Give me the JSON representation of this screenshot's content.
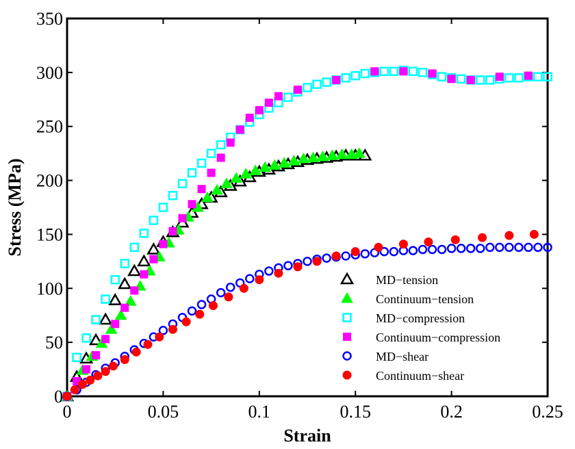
{
  "chart_data": {
    "type": "scatter",
    "title": "",
    "xlabel": "Strain",
    "ylabel": "Stress (MPa)",
    "xlim": [
      0,
      0.25
    ],
    "ylim": [
      0,
      350
    ],
    "x_ticks": [
      "0",
      "0.05",
      "0.1",
      "0.15",
      "0.2",
      "0.25"
    ],
    "y_ticks": [
      "0",
      "50",
      "100",
      "150",
      "200",
      "250",
      "300",
      "350"
    ],
    "grid": false,
    "legend_position": "bottom-right",
    "series": [
      {
        "name": "MD−tension",
        "marker": "triangle-open",
        "color": "#000000",
        "points": [
          [
            0.0,
            0
          ],
          [
            0.005,
            18
          ],
          [
            0.01,
            35
          ],
          [
            0.015,
            52
          ],
          [
            0.02,
            71
          ],
          [
            0.025,
            89
          ],
          [
            0.03,
            104
          ],
          [
            0.035,
            116
          ],
          [
            0.04,
            125
          ],
          [
            0.045,
            136
          ],
          [
            0.05,
            143
          ],
          [
            0.055,
            152
          ],
          [
            0.06,
            161
          ],
          [
            0.065,
            170
          ],
          [
            0.07,
            178
          ],
          [
            0.075,
            184
          ],
          [
            0.08,
            189
          ],
          [
            0.085,
            195
          ],
          [
            0.09,
            199
          ],
          [
            0.095,
            203
          ],
          [
            0.1,
            208
          ],
          [
            0.105,
            210
          ],
          [
            0.11,
            213
          ],
          [
            0.115,
            215
          ],
          [
            0.12,
            217
          ],
          [
            0.125,
            219
          ],
          [
            0.13,
            220
          ],
          [
            0.135,
            221
          ],
          [
            0.14,
            222
          ],
          [
            0.145,
            223
          ],
          [
            0.15,
            223
          ],
          [
            0.155,
            223
          ]
        ]
      },
      {
        "name": "Continuum−tension",
        "marker": "triangle-filled",
        "color": "#00ff00",
        "points": [
          [
            0.0,
            0
          ],
          [
            0.008,
            24
          ],
          [
            0.013,
            37
          ],
          [
            0.018,
            49
          ],
          [
            0.023,
            62
          ],
          [
            0.028,
            75
          ],
          [
            0.033,
            88
          ],
          [
            0.038,
            102
          ],
          [
            0.043,
            116
          ],
          [
            0.048,
            129
          ],
          [
            0.053,
            142
          ],
          [
            0.058,
            154
          ],
          [
            0.063,
            166
          ],
          [
            0.068,
            175
          ],
          [
            0.073,
            184
          ],
          [
            0.078,
            191
          ],
          [
            0.083,
            197
          ],
          [
            0.088,
            202
          ],
          [
            0.093,
            206
          ],
          [
            0.098,
            209
          ],
          [
            0.103,
            212
          ],
          [
            0.108,
            214
          ],
          [
            0.113,
            216
          ],
          [
            0.118,
            218
          ],
          [
            0.123,
            220
          ],
          [
            0.128,
            221
          ],
          [
            0.133,
            222
          ],
          [
            0.138,
            223
          ],
          [
            0.143,
            224
          ],
          [
            0.148,
            224
          ],
          [
            0.152,
            225
          ]
        ]
      },
      {
        "name": "MD−compression",
        "marker": "square-open",
        "color": "#00ffff",
        "points": [
          [
            0.0,
            0
          ],
          [
            0.005,
            36
          ],
          [
            0.01,
            54
          ],
          [
            0.015,
            71
          ],
          [
            0.02,
            90
          ],
          [
            0.025,
            108
          ],
          [
            0.03,
            123
          ],
          [
            0.035,
            138
          ],
          [
            0.04,
            151
          ],
          [
            0.045,
            163
          ],
          [
            0.05,
            175
          ],
          [
            0.055,
            186
          ],
          [
            0.06,
            197
          ],
          [
            0.065,
            207
          ],
          [
            0.07,
            216
          ],
          [
            0.075,
            225
          ],
          [
            0.08,
            233
          ],
          [
            0.085,
            240
          ],
          [
            0.09,
            247
          ],
          [
            0.095,
            254
          ],
          [
            0.1,
            261
          ],
          [
            0.105,
            267
          ],
          [
            0.11,
            272
          ],
          [
            0.115,
            277
          ],
          [
            0.12,
            282
          ],
          [
            0.125,
            286
          ],
          [
            0.13,
            289
          ],
          [
            0.135,
            291
          ],
          [
            0.14,
            293
          ],
          [
            0.145,
            295
          ],
          [
            0.15,
            297
          ],
          [
            0.155,
            299
          ],
          [
            0.16,
            300
          ],
          [
            0.165,
            301
          ],
          [
            0.17,
            301
          ],
          [
            0.175,
            302
          ],
          [
            0.18,
            301
          ],
          [
            0.185,
            300
          ],
          [
            0.19,
            298
          ],
          [
            0.195,
            296
          ],
          [
            0.2,
            295
          ],
          [
            0.205,
            294
          ],
          [
            0.21,
            293
          ],
          [
            0.215,
            293
          ],
          [
            0.22,
            293
          ],
          [
            0.225,
            294
          ],
          [
            0.23,
            295
          ],
          [
            0.235,
            295
          ],
          [
            0.24,
            296
          ],
          [
            0.245,
            296
          ],
          [
            0.25,
            296
          ]
        ]
      },
      {
        "name": "Continuum−compression",
        "marker": "square-filled",
        "color": "#ff00ff",
        "points": [
          [
            0.0,
            0
          ],
          [
            0.005,
            14
          ],
          [
            0.01,
            25
          ],
          [
            0.015,
            38
          ],
          [
            0.02,
            53
          ],
          [
            0.025,
            67
          ],
          [
            0.03,
            82
          ],
          [
            0.035,
            98
          ],
          [
            0.04,
            113
          ],
          [
            0.045,
            127
          ],
          [
            0.05,
            141
          ],
          [
            0.055,
            153
          ],
          [
            0.06,
            165
          ],
          [
            0.065,
            178
          ],
          [
            0.07,
            192
          ],
          [
            0.075,
            207
          ],
          [
            0.08,
            221
          ],
          [
            0.085,
            235
          ],
          [
            0.09,
            247
          ],
          [
            0.095,
            258
          ],
          [
            0.1,
            265
          ],
          [
            0.105,
            272
          ],
          [
            0.11,
            278
          ],
          [
            0.12,
            284
          ],
          [
            0.14,
            293
          ],
          [
            0.16,
            301
          ],
          [
            0.175,
            301
          ],
          [
            0.19,
            299
          ],
          [
            0.2,
            294
          ],
          [
            0.21,
            293
          ],
          [
            0.225,
            296
          ],
          [
            0.24,
            297
          ]
        ]
      },
      {
        "name": "MD−shear",
        "marker": "circle-open",
        "color": "#0000ff",
        "points": [
          [
            0.0,
            0
          ],
          [
            0.005,
            6
          ],
          [
            0.01,
            13
          ],
          [
            0.015,
            20
          ],
          [
            0.02,
            26
          ],
          [
            0.025,
            31
          ],
          [
            0.03,
            37
          ],
          [
            0.035,
            43
          ],
          [
            0.04,
            49
          ],
          [
            0.045,
            55
          ],
          [
            0.05,
            61
          ],
          [
            0.055,
            67
          ],
          [
            0.06,
            73
          ],
          [
            0.065,
            79
          ],
          [
            0.07,
            85
          ],
          [
            0.075,
            90
          ],
          [
            0.08,
            96
          ],
          [
            0.085,
            101
          ],
          [
            0.09,
            105
          ],
          [
            0.095,
            109
          ],
          [
            0.1,
            113
          ],
          [
            0.105,
            116
          ],
          [
            0.11,
            119
          ],
          [
            0.115,
            121
          ],
          [
            0.12,
            123
          ],
          [
            0.125,
            125
          ],
          [
            0.13,
            127
          ],
          [
            0.135,
            128
          ],
          [
            0.14,
            129
          ],
          [
            0.145,
            130
          ],
          [
            0.15,
            131
          ],
          [
            0.155,
            132
          ],
          [
            0.16,
            133
          ],
          [
            0.165,
            134
          ],
          [
            0.17,
            134
          ],
          [
            0.175,
            135
          ],
          [
            0.18,
            135
          ],
          [
            0.185,
            136
          ],
          [
            0.19,
            136
          ],
          [
            0.195,
            136
          ],
          [
            0.2,
            137
          ],
          [
            0.205,
            137
          ],
          [
            0.21,
            137
          ],
          [
            0.215,
            137
          ],
          [
            0.22,
            138
          ],
          [
            0.225,
            138
          ],
          [
            0.23,
            138
          ],
          [
            0.235,
            138
          ],
          [
            0.24,
            138
          ],
          [
            0.245,
            138
          ],
          [
            0.25,
            138
          ]
        ]
      },
      {
        "name": "Continuum−shear",
        "marker": "circle-filled",
        "color": "#ff0000",
        "points": [
          [
            0.0,
            0
          ],
          [
            0.004,
            6
          ],
          [
            0.008,
            11
          ],
          [
            0.012,
            15
          ],
          [
            0.016,
            19
          ],
          [
            0.02,
            23
          ],
          [
            0.024,
            28
          ],
          [
            0.03,
            34
          ],
          [
            0.036,
            41
          ],
          [
            0.042,
            48
          ],
          [
            0.048,
            55
          ],
          [
            0.055,
            62
          ],
          [
            0.062,
            69
          ],
          [
            0.069,
            76
          ],
          [
            0.076,
            84
          ],
          [
            0.084,
            92
          ],
          [
            0.092,
            100
          ],
          [
            0.1,
            108
          ],
          [
            0.11,
            114
          ],
          [
            0.12,
            120
          ],
          [
            0.13,
            125
          ],
          [
            0.14,
            130
          ],
          [
            0.15,
            134
          ],
          [
            0.162,
            138
          ],
          [
            0.175,
            141
          ],
          [
            0.188,
            143
          ],
          [
            0.202,
            145
          ],
          [
            0.216,
            147
          ],
          [
            0.23,
            149
          ],
          [
            0.243,
            150
          ]
        ]
      }
    ]
  }
}
